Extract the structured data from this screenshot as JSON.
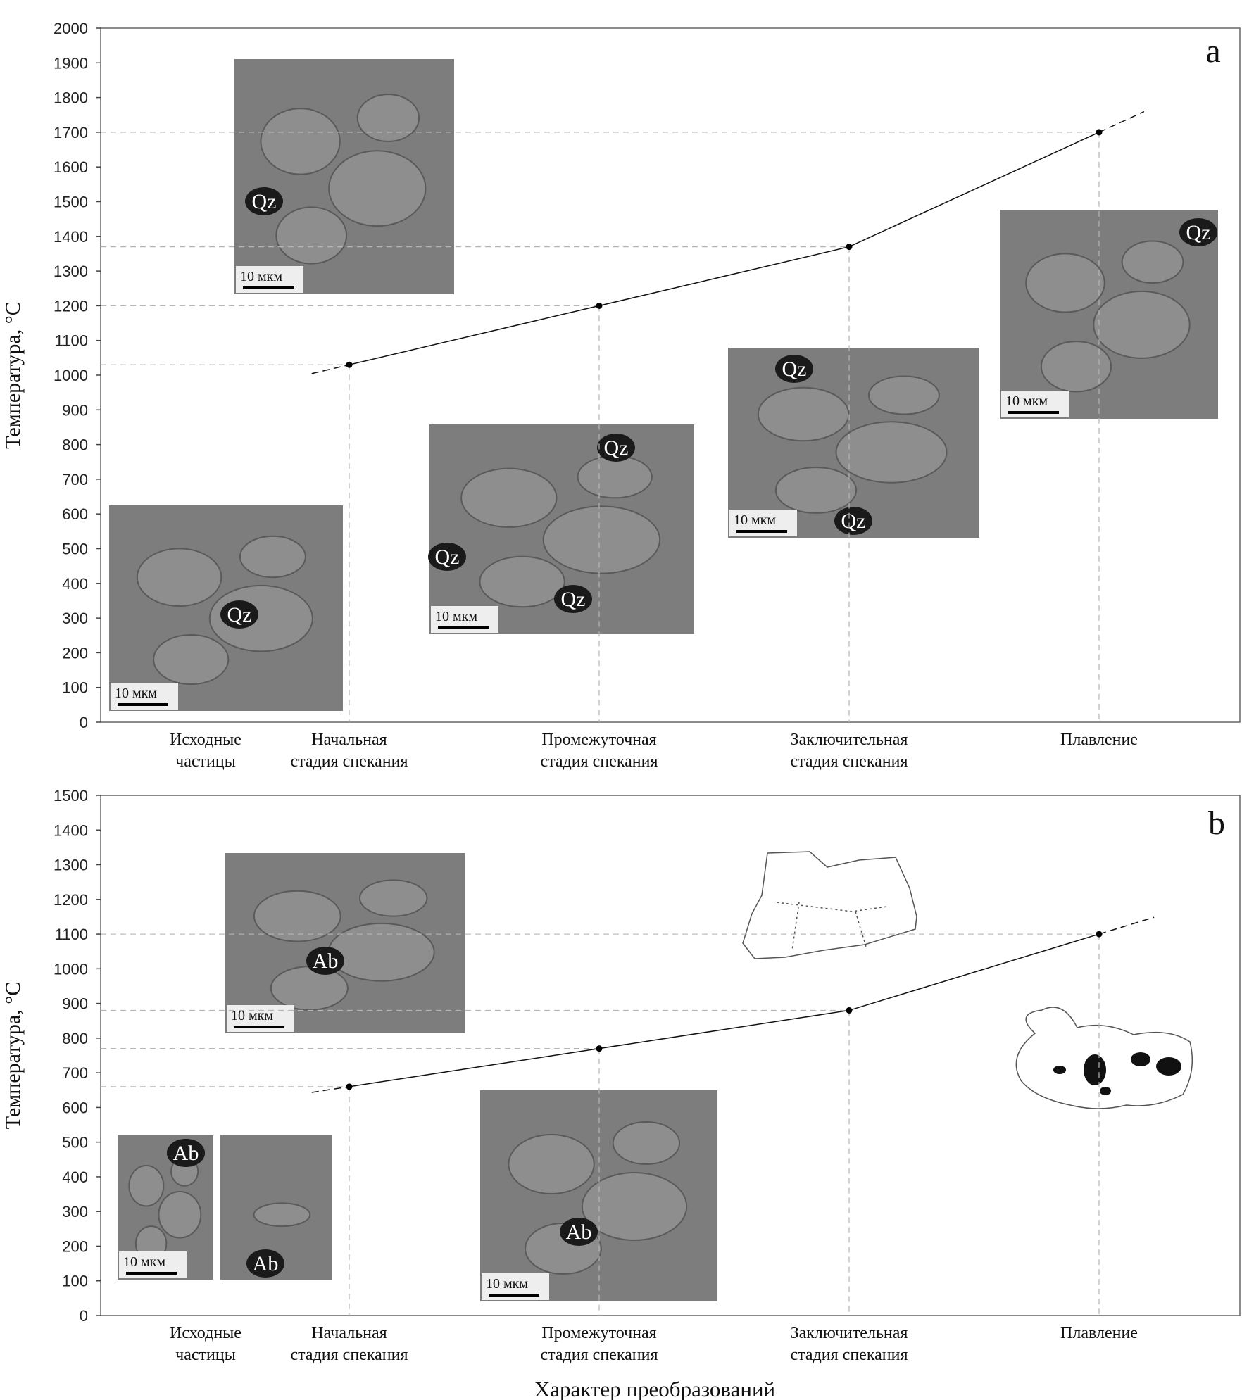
{
  "figure": {
    "x_axis_title": "Характер преобразований",
    "colors": {
      "line": "#111111",
      "guide": "#b5b5b5",
      "arrow_blue": "#2a9fd6",
      "arrow_yellow": "#f2e600",
      "arrow_white": "#ffffff",
      "micrograph_bg": "#7d7d7d",
      "grain": "#8e8e8e"
    }
  },
  "chart_data": [
    {
      "panel": "a",
      "type": "line",
      "ylabel": "Температура, °C",
      "ylim": [
        0,
        2000
      ],
      "ytick_step": 100,
      "categories": [
        "Исходные частицы",
        "Начальная стадия спекания",
        "Промежуточная стадия спекания",
        "Заключительная стадия спекания",
        "Плавление"
      ],
      "category_lines": [
        [
          "Исходные",
          "частицы"
        ],
        [
          "Начальная",
          "стадия спекания"
        ],
        [
          "Промежуточная",
          "стадия спекания"
        ],
        [
          "Заключительная",
          "стадия спекания"
        ],
        [
          "Плавление",
          ""
        ]
      ],
      "points": [
        {
          "category": "Начальная стадия спекания",
          "y": 1030
        },
        {
          "category": "Промежуточная стадия спекания",
          "y": 1200
        },
        {
          "category": "Заключительная стадия спекания",
          "y": 1370
        },
        {
          "category": "Плавление",
          "y": 1700
        }
      ],
      "grid": false,
      "micrographs": [
        {
          "stage": "Исходные частицы",
          "scale_bar": "10 мкм",
          "labels": [
            "Qz"
          ]
        },
        {
          "stage": "Начальная стадия спекания",
          "scale_bar": "10 мкм",
          "labels": [
            "Qz"
          ]
        },
        {
          "stage": "Промежуточная стадия спекания",
          "scale_bar": "10 мкм",
          "labels": [
            "Qz",
            "Qz",
            "Qz"
          ]
        },
        {
          "stage": "Заключительная стадия спекания",
          "scale_bar": "10 мкм",
          "labels": [
            "Qz",
            "Qz"
          ]
        },
        {
          "stage": "Плавление",
          "scale_bar": "10 мкм",
          "labels": [
            "Qz"
          ]
        }
      ]
    },
    {
      "panel": "b",
      "type": "line",
      "ylabel": "Температура, °C",
      "ylim": [
        0,
        1500
      ],
      "ytick_step": 100,
      "categories": [
        "Исходные частицы",
        "Начальная стадия спекания",
        "Промежуточная стадия спекания",
        "Заключительная стадия спекания",
        "Плавление"
      ],
      "category_lines": [
        [
          "Исходные",
          "частицы"
        ],
        [
          "Начальная",
          "стадия спекания"
        ],
        [
          "Промежуточная",
          "стадия спекания"
        ],
        [
          "Заключительная",
          "стадия спекания"
        ],
        [
          "Плавление",
          ""
        ]
      ],
      "points": [
        {
          "category": "Начальная стадия спекания",
          "y": 660
        },
        {
          "category": "Промежуточная стадия спекания",
          "y": 770
        },
        {
          "category": "Заключительная стадия спекания",
          "y": 880
        },
        {
          "category": "Плавление",
          "y": 1100
        }
      ],
      "grid": false,
      "micrographs": [
        {
          "stage": "Исходные частицы",
          "scale_bar": "10 мкм",
          "labels": [
            "Ab",
            "Ab"
          ]
        },
        {
          "stage": "Начальная стадия спекания",
          "scale_bar": "10 мкм",
          "labels": [
            "Ab"
          ]
        },
        {
          "stage": "Промежуточная стадия спекания",
          "scale_bar": "10 мкм",
          "labels": [
            "Ab"
          ]
        }
      ]
    }
  ]
}
